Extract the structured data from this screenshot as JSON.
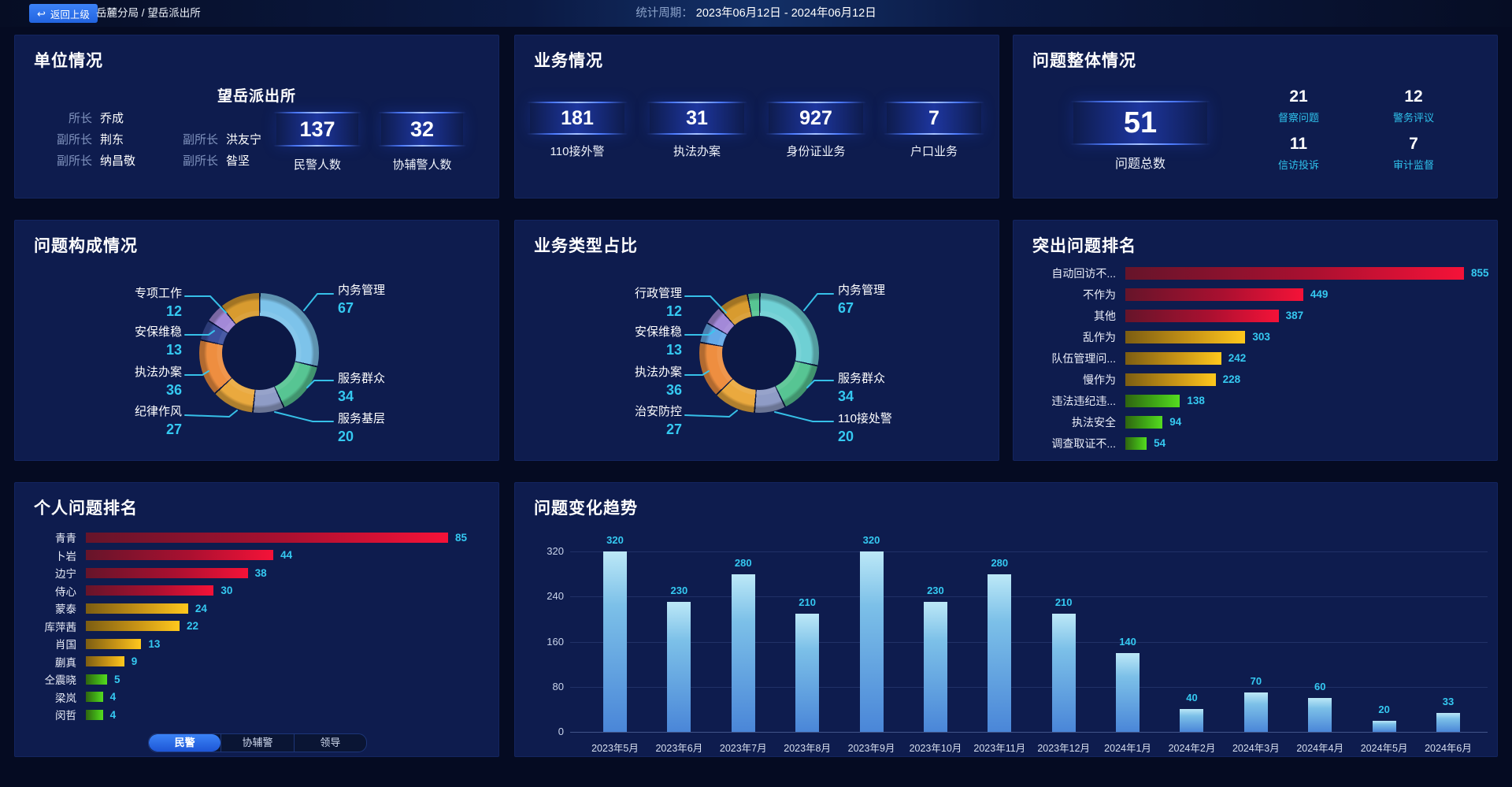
{
  "topbar": {
    "back_label": "返回上级",
    "breadcrumb": "岳麓分局 / 望岳派出所",
    "period_label": "统计周期：",
    "period_value": "2023年06月12日 - 2024年06月12日"
  },
  "colors": {
    "page_bg": "#050b22",
    "panel_bg": "#0e1c4e",
    "accent_cyan": "#35c9f1",
    "bar_red": "#f51238",
    "bar_gold": "#ffc81d",
    "bar_green": "#55dc20",
    "trend_bar_top": "#bce8f7",
    "trend_bar_bottom": "#4a86d8",
    "back_button_blue": "#2a6df0"
  },
  "panels": {
    "unit": {
      "title": "单位情况",
      "station": "望岳派出所",
      "leaders": [
        {
          "role": "所长",
          "name": "乔成"
        },
        {
          "role": "副所长",
          "name": "荆东"
        },
        {
          "role": "副所长",
          "name": "洪友宁"
        },
        {
          "role": "副所长",
          "name": "纳昌敬"
        },
        {
          "role": "副所长",
          "name": "昝坚"
        }
      ],
      "stats": [
        {
          "value": "137",
          "label": "民警人数"
        },
        {
          "value": "32",
          "label": "协辅警人数"
        }
      ]
    },
    "business": {
      "title": "业务情况",
      "stats": [
        {
          "value": "181",
          "label": "110接外警"
        },
        {
          "value": "31",
          "label": "执法办案"
        },
        {
          "value": "927",
          "label": "身份证业务"
        },
        {
          "value": "7",
          "label": "户口业务"
        }
      ]
    },
    "overview": {
      "title": "问题整体情况",
      "total": {
        "value": "51",
        "label": "问题总数"
      },
      "stats": [
        {
          "value": "21",
          "label": "督察问题"
        },
        {
          "value": "12",
          "label": "警务评议"
        },
        {
          "value": "11",
          "label": "信访投诉"
        },
        {
          "value": "7",
          "label": "审计监督"
        }
      ]
    },
    "personal": {
      "tabs": [
        {
          "label": "民警",
          "active": true
        },
        {
          "label": "协辅警",
          "active": false
        },
        {
          "label": "领导",
          "active": false
        }
      ]
    }
  },
  "chart_data": [
    {
      "id": "problem-composition",
      "type": "pie",
      "donut": true,
      "title": "问题构成情况",
      "legend_position": "callout-labels",
      "segments": [
        {
          "label": "内务管理",
          "value": 67,
          "color": "#7dc3ea"
        },
        {
          "label": "服务群众",
          "value": 34,
          "color": "#57c593"
        },
        {
          "label": "服务基层",
          "value": 20,
          "color": "#8f9cc6"
        },
        {
          "label": "纪律作风",
          "value": 27,
          "color": "#eaa93e"
        },
        {
          "label": "执法办案",
          "value": 36,
          "color": "#ee8e40"
        },
        {
          "label": "安保维稳",
          "value": 13,
          "color": "#3b4f9d"
        },
        {
          "label": "专项工作",
          "value": 12,
          "color": "#a389d8"
        },
        {
          "label": "",
          "value": 26,
          "color": "#d89b2f"
        }
      ]
    },
    {
      "id": "business-type-share",
      "type": "pie",
      "donut": true,
      "title": "业务类型占比",
      "legend_position": "callout-labels",
      "segments": [
        {
          "label": "内务管理",
          "value": 67,
          "color": "#6fd0d4"
        },
        {
          "label": "服务群众",
          "value": 34,
          "color": "#57c593"
        },
        {
          "label": "110接处警",
          "value": 20,
          "color": "#8f9cc6"
        },
        {
          "label": "治安防控",
          "value": 27,
          "color": "#eaa93e"
        },
        {
          "label": "执法办案",
          "value": 36,
          "color": "#ee8e40"
        },
        {
          "label": "安保维稳",
          "value": 13,
          "color": "#64a9e8"
        },
        {
          "label": "行政管理",
          "value": 12,
          "color": "#a389d8"
        },
        {
          "label": "",
          "value": 20,
          "color": "#d89b2f"
        },
        {
          "label": "",
          "value": 8,
          "color": "#57c593"
        }
      ]
    },
    {
      "id": "top-problems",
      "type": "bar",
      "orientation": "horizontal",
      "title": "突出问题排名",
      "categories": [
        "自动回访不...",
        "不作为",
        "其他",
        "乱作为",
        "队伍管理问...",
        "慢作为",
        "违法违纪违...",
        "执法安全",
        "调查取证不..."
      ],
      "values": [
        855,
        449,
        387,
        303,
        242,
        228,
        138,
        94,
        54
      ],
      "bar_colors": [
        "red",
        "red",
        "red",
        "gold",
        "gold",
        "gold",
        "green",
        "green",
        "green"
      ],
      "xmax": 855,
      "grid": false
    },
    {
      "id": "personal-ranking",
      "type": "bar",
      "orientation": "horizontal",
      "title": "个人问题排名",
      "categories": [
        "青青",
        "卜岩",
        "边宁",
        "侍心",
        "蒙泰",
        "库萍茜",
        "肖国",
        "蒯真",
        "仝震晓",
        "梁岚",
        "闵哲"
      ],
      "values": [
        85,
        44,
        38,
        30,
        24,
        22,
        13,
        9,
        5,
        4,
        4
      ],
      "bar_colors": [
        "red",
        "red",
        "red",
        "red",
        "gold",
        "gold",
        "gold",
        "gold",
        "green",
        "green",
        "green"
      ],
      "xmax": 85,
      "grid": false
    },
    {
      "id": "problem-trend",
      "type": "bar",
      "orientation": "vertical",
      "title": "问题变化趋势",
      "categories": [
        "2023年5月",
        "2023年6月",
        "2023年7月",
        "2023年8月",
        "2023年9月",
        "2023年10月",
        "2023年11月",
        "2023年12月",
        "2024年1月",
        "2024年2月",
        "2024年3月",
        "2024年4月",
        "2024年5月",
        "2024年6月"
      ],
      "values": [
        320,
        230,
        280,
        210,
        320,
        230,
        280,
        210,
        140,
        40,
        70,
        60,
        20,
        33
      ],
      "y_ticks": [
        0,
        80,
        160,
        240,
        320
      ],
      "ylim": [
        0,
        320
      ],
      "grid": true
    }
  ]
}
